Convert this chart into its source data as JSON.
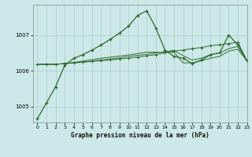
{
  "title": "Graphe pression niveau de la mer (hPa)",
  "bg_color": "#cce8e8",
  "grid_color": "#aacece",
  "line_color": "#2d6a2d",
  "xlim": [
    -0.5,
    23
  ],
  "ylim": [
    1004.55,
    1007.85
  ],
  "yticks": [
    1005,
    1006,
    1007
  ],
  "xticks": [
    0,
    1,
    2,
    3,
    4,
    5,
    6,
    7,
    8,
    9,
    10,
    11,
    12,
    13,
    14,
    15,
    16,
    17,
    18,
    19,
    20,
    21,
    22,
    23
  ],
  "series1": [
    1004.65,
    1005.1,
    1005.55,
    1006.15,
    1006.35,
    1006.45,
    1006.58,
    1006.72,
    1006.88,
    1007.05,
    1007.25,
    1007.55,
    1007.68,
    1007.2,
    1006.58,
    1006.4,
    1006.35,
    1006.2,
    1006.3,
    1006.45,
    1006.5,
    1007.0,
    1006.72,
    1006.28
  ],
  "series2": [
    1006.18,
    1006.18,
    1006.18,
    1006.2,
    1006.22,
    1006.24,
    1006.26,
    1006.28,
    1006.3,
    1006.33,
    1006.35,
    1006.38,
    1006.42,
    1006.45,
    1006.5,
    1006.55,
    1006.58,
    1006.62,
    1006.65,
    1006.7,
    1006.73,
    1006.76,
    1006.8,
    1006.28
  ],
  "series3": [
    1006.18,
    1006.18,
    1006.18,
    1006.2,
    1006.22,
    1006.24,
    1006.27,
    1006.3,
    1006.33,
    1006.36,
    1006.4,
    1006.43,
    1006.46,
    1006.5,
    1006.53,
    1006.57,
    1006.42,
    1006.3,
    1006.35,
    1006.45,
    1006.5,
    1006.62,
    1006.68,
    1006.28
  ],
  "series4": [
    1006.18,
    1006.18,
    1006.18,
    1006.2,
    1006.23,
    1006.27,
    1006.31,
    1006.35,
    1006.38,
    1006.41,
    1006.44,
    1006.48,
    1006.52,
    1006.52,
    1006.52,
    1006.52,
    1006.22,
    1006.22,
    1006.28,
    1006.35,
    1006.4,
    1006.55,
    1006.6,
    1006.28
  ]
}
